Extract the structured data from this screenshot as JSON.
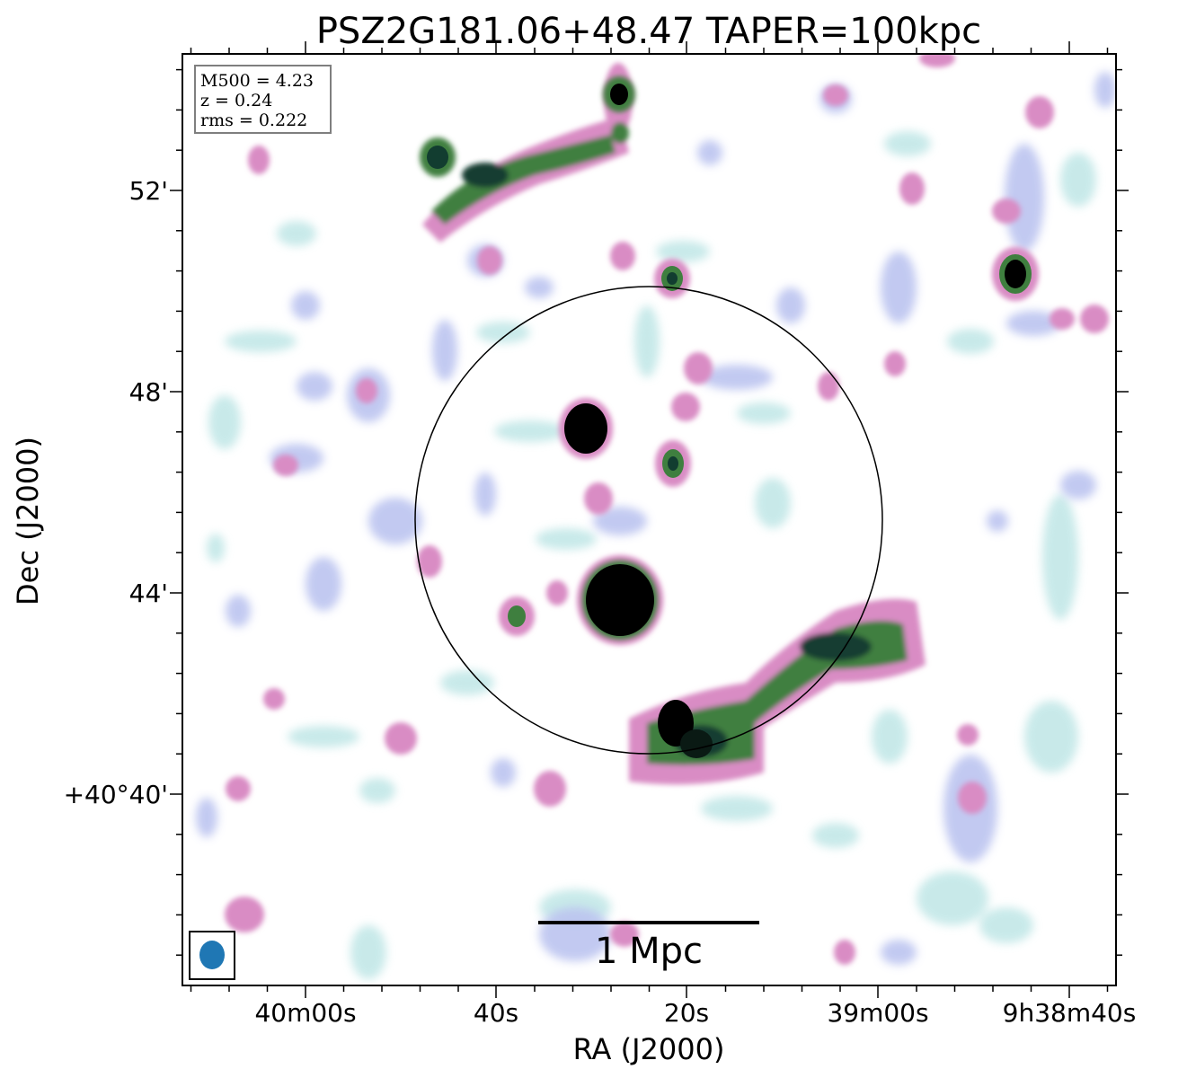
{
  "chart_data": {
    "type": "heatmap",
    "title": "PSZ2G181.06+48.47 TAPER=100kpc",
    "xlabel": "RA (J2000)",
    "ylabel": "Dec (J2000)",
    "x_ticks": [
      "40m00s",
      "40s",
      "20s",
      "39m00s",
      "9h38m40s"
    ],
    "y_ticks": [
      "52'",
      "48'",
      "44'",
      "+40°40'"
    ],
    "info_box": [
      "M500 = 4.23",
      "z = 0.24",
      "rms = 0.222"
    ],
    "scale_bar_label": "1 Mpc",
    "colormap": "cubehelix_r",
    "colors": {
      "faint": "#bfe6e6",
      "low": "#bcc4f0",
      "mid": "#d98cc4",
      "high": "#3f7f3f",
      "peak": "#000000",
      "beam": "#1f77b4"
    },
    "sources": [
      {
        "ra": "9h39m28s",
        "dec": "+40°44.0'",
        "peak": 1.0
      },
      {
        "ra": "9h39m30s",
        "dec": "+40°47.3'",
        "peak": 1.0
      },
      {
        "ra": "9h39m20s",
        "dec": "+40°46.6'",
        "peak": 0.75
      },
      {
        "ra": "9h39m20s",
        "dec": "+40°41.2'",
        "peak": 0.95
      },
      {
        "ra": "9h39m27s",
        "dec": "+40°53.8'",
        "peak": 0.9
      },
      {
        "ra": "9h39m43s",
        "dec": "+40°52.6'",
        "peak": 0.85
      },
      {
        "ra": "9h38m44s",
        "dec": "+40°50.3'",
        "peak": 0.9
      },
      {
        "ra": "9h39m06s",
        "dec": "+40°42.8'",
        "peak": 0.8
      }
    ]
  }
}
